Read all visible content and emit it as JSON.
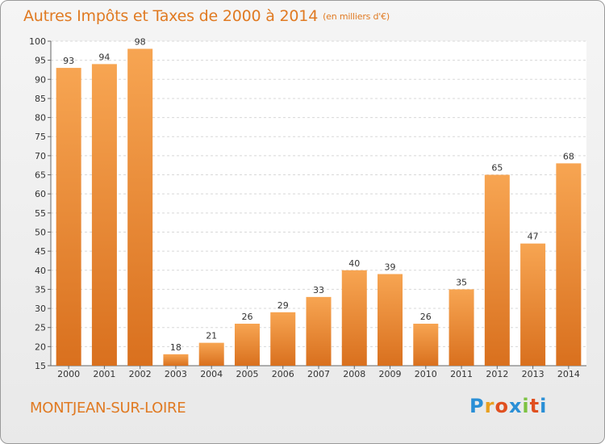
{
  "title": "Autres Impôts et Taxes de 2000 à 2014",
  "title_unit": "(en milliers d'€)",
  "commune": "MONTJEAN-SUR-LOIRE",
  "logo": {
    "text": "Proxiti",
    "letter_colors": [
      "#2a8fd6",
      "#e8a020",
      "#e05020",
      "#2a8fd6",
      "#7cc242",
      "#e05020",
      "#2a8fd6"
    ]
  },
  "colors": {
    "bar_light": "#f7a552",
    "bar_dark": "#d9701e",
    "accent": "#e07a22",
    "axis_text": "#333333",
    "grid": "#d8d8d8"
  },
  "chart_data": {
    "type": "bar",
    "title": "Autres Impôts et Taxes de 2000 à 2014",
    "subtitle": "(en milliers d'€)",
    "xlabel": "",
    "ylabel": "",
    "categories": [
      "2000",
      "2001",
      "2002",
      "2003",
      "2004",
      "2005",
      "2006",
      "2007",
      "2008",
      "2009",
      "2010",
      "2011",
      "2012",
      "2013",
      "2014"
    ],
    "values": [
      93,
      94,
      98,
      18,
      21,
      26,
      29,
      33,
      40,
      39,
      26,
      35,
      65,
      47,
      68
    ],
    "ylim": [
      15,
      100
    ],
    "yticks": [
      15,
      20,
      25,
      30,
      35,
      40,
      45,
      50,
      55,
      60,
      65,
      70,
      75,
      80,
      85,
      90,
      95,
      100
    ],
    "grid": "horizontal dashed",
    "legend": "none",
    "data_labels": true
  }
}
